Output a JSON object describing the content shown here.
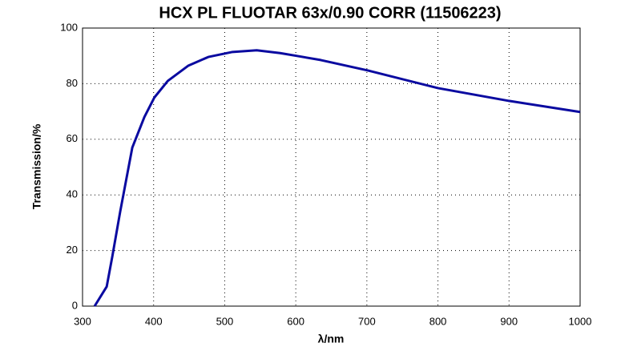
{
  "chart_data": {
    "type": "line",
    "title": "HCX PL FLUOTAR 63x/0.90 CORR (11506223)",
    "x_label": "λ/nm",
    "y_label": "Transmission/%",
    "x": [
      317,
      334,
      342,
      353,
      370,
      387,
      401,
      420,
      449,
      477,
      511,
      545,
      578,
      601,
      635,
      702,
      800,
      900,
      1000
    ],
    "series": [
      {
        "name": "Transmission",
        "color": "#0a0aa0",
        "values": [
          0,
          7,
          18,
          34,
          57,
          68,
          75,
          81,
          86.5,
          89.6,
          91.4,
          92,
          91,
          90,
          88.5,
          84.7,
          78.4,
          73.8,
          69.8
        ]
      }
    ],
    "xlim": [
      300,
      1000
    ],
    "xticks": [
      300,
      400,
      500,
      600,
      700,
      800,
      900,
      1000
    ],
    "ylim": [
      0,
      100
    ],
    "yticks": [
      0,
      20,
      40,
      60,
      80,
      100
    ],
    "grid": true
  }
}
